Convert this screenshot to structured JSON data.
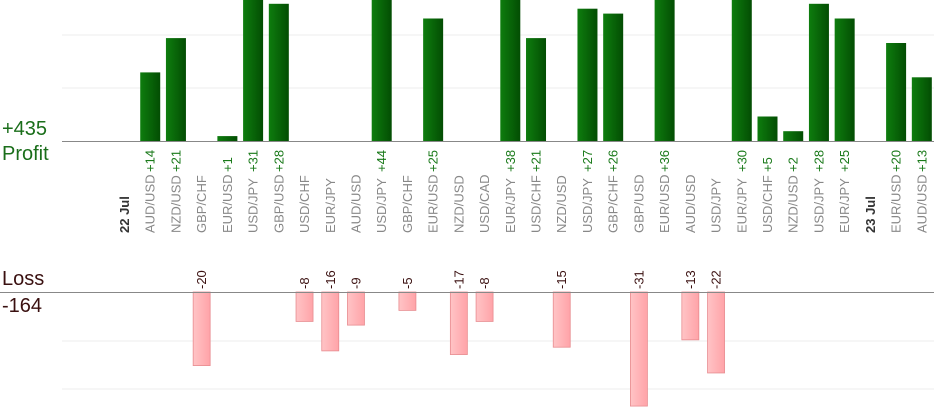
{
  "summary": {
    "profit_total": "+435",
    "profit_label": "Profit",
    "loss_label": "Loss",
    "loss_total": "-164"
  },
  "colors": {
    "profit_bar": "#0b6b0b",
    "profit_text": "#1a7a1a",
    "loss_bar": "#ffb3b6",
    "loss_stroke": "#e88c90",
    "axis": "#888888",
    "grid": "#eeeeee",
    "category_text": "#888888",
    "date_text": "#333333"
  },
  "chart_data": {
    "type": "bar",
    "profit_ylim": [
      0,
      28
    ],
    "loss_ylim": [
      0,
      32
    ],
    "grid": true,
    "columns": [
      {
        "label": "22 Jul",
        "date": true
      },
      {
        "label": "AUD/USD",
        "value": 14
      },
      {
        "label": "NZD/USD",
        "value": 21
      },
      {
        "label": "GBP/CHF",
        "value": -20
      },
      {
        "label": "EUR/USD",
        "value": 1
      },
      {
        "label": "USD/JPY",
        "value": 31
      },
      {
        "label": "GBP/USD",
        "value": 28
      },
      {
        "label": "USD/CHF",
        "value": -8
      },
      {
        "label": "EUR/JPY",
        "value": -16
      },
      {
        "label": "AUD/USD",
        "value": -9
      },
      {
        "label": "USD/JPY",
        "value": 44
      },
      {
        "label": "GBP/CHF",
        "value": -5
      },
      {
        "label": "EUR/USD",
        "value": 25
      },
      {
        "label": "NZD/USD",
        "value": -17
      },
      {
        "label": "USD/CAD",
        "value": -8
      },
      {
        "label": "EUR/JPY",
        "value": 38
      },
      {
        "label": "USD/CHF",
        "value": 21
      },
      {
        "label": "NZD/USD",
        "value": -15
      },
      {
        "label": "USD/JPY",
        "value": 27
      },
      {
        "label": "GBP/CHF",
        "value": 26
      },
      {
        "label": "GBP/USD",
        "value": -31
      },
      {
        "label": "EUR/USD",
        "value": 36
      },
      {
        "label": "AUD/USD",
        "value": -13
      },
      {
        "label": "USD/JPY",
        "value": -22
      },
      {
        "label": "EUR/JPY",
        "value": 30
      },
      {
        "label": "USD/CHF",
        "value": 5
      },
      {
        "label": "NZD/USD",
        "value": 2
      },
      {
        "label": "USD/JPY",
        "value": 28
      },
      {
        "label": "EUR/JPY",
        "value": 25
      },
      {
        "label": "23 Jul",
        "date": true
      },
      {
        "label": "EUR/USD",
        "value": 20
      },
      {
        "label": "AUD/USD",
        "value": 13
      }
    ]
  }
}
